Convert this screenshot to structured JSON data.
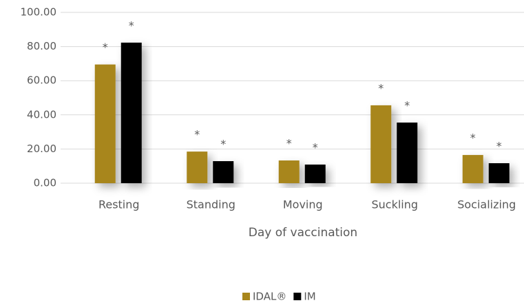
{
  "chart_data": {
    "type": "bar",
    "x_label": "Day of vaccination",
    "categories": [
      "Resting",
      "Standing",
      "Moving",
      "Suckling",
      "Socializing"
    ],
    "series": [
      {
        "name": "IDAL®",
        "color": "#a8861c",
        "values": [
          69.5,
          18.5,
          13.3,
          45.6,
          16.5
        ],
        "annotations": [
          "*",
          "*",
          "*",
          "*",
          "*"
        ]
      },
      {
        "name": "IM",
        "color": "#000000",
        "values": [
          82.3,
          12.9,
          10.9,
          35.5,
          11.7
        ],
        "annotations": [
          "*",
          "*",
          "*",
          "*",
          "*"
        ]
      }
    ],
    "ylim": [
      0,
      100
    ],
    "yticks": [
      {
        "value": 0,
        "label": "0.00"
      },
      {
        "value": 20,
        "label": "20.00"
      },
      {
        "value": 40,
        "label": "40.00"
      },
      {
        "value": 60,
        "label": "60.00"
      },
      {
        "value": 80,
        "label": "80.00"
      },
      {
        "value": 100,
        "label": "100.00"
      }
    ],
    "grid": true,
    "legend": "bottom"
  }
}
